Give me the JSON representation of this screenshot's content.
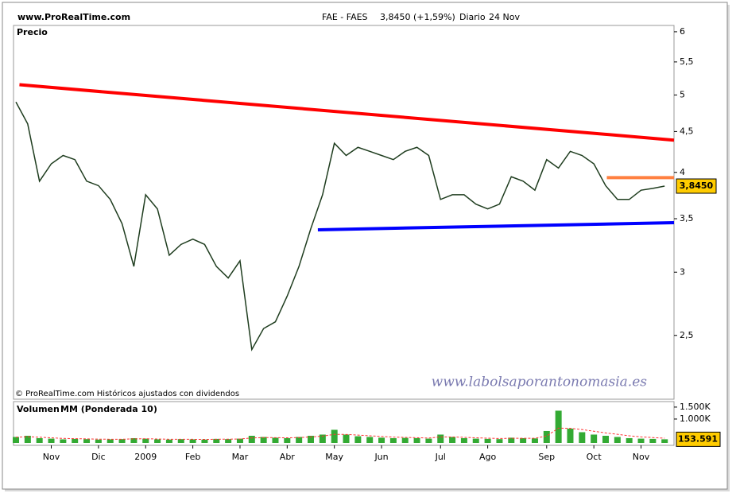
{
  "chart_data": [
    {
      "type": "line",
      "source": "www.ProRealTime.com",
      "title": "FAE - FAES",
      "quote": "3,8450 (+1,59%)",
      "period": "Diario",
      "date": "24 Nov",
      "panel_label": "Precio",
      "footnote": "© ProRealTime.com Históricos ajustados con dividendos",
      "watermark": "www.labolsaporantonomasia.es",
      "last_price": {
        "value": 3.845,
        "label": "3,8450"
      },
      "log_scale": true,
      "ylim": [
        2.08,
        6.11
      ],
      "yticks": [
        {
          "value": 2.5,
          "label": "2,5"
        },
        3,
        {
          "value": 3.5,
          "label": "3,5"
        },
        4,
        {
          "value": 4.5,
          "label": "4,5"
        },
        5,
        {
          "value": 5.5,
          "label": "5,5"
        },
        6
      ],
      "color": "#1f3d1f",
      "values": [
        4.9,
        4.6,
        3.9,
        4.1,
        4.2,
        4.15,
        3.9,
        3.85,
        3.7,
        3.45,
        3.05,
        3.75,
        3.6,
        3.15,
        3.25,
        3.3,
        3.25,
        3.05,
        2.95,
        3.1,
        2.4,
        2.55,
        2.6,
        2.8,
        3.05,
        3.4,
        3.75,
        4.35,
        4.2,
        4.3,
        4.25,
        4.2,
        4.15,
        4.25,
        4.3,
        4.2,
        3.7,
        3.75,
        3.75,
        3.65,
        3.6,
        3.65,
        3.95,
        3.9,
        3.8,
        4.15,
        4.05,
        4.25,
        4.2,
        4.1,
        3.85,
        3.7,
        3.7,
        3.8,
        3.82,
        3.845
      ],
      "trendlines": [
        {
          "color": "#ff0000",
          "start": [
            0.3,
            5.15
          ],
          "end": [
            56.2,
            4.39
          ]
        },
        {
          "color": "#0000ff",
          "start": [
            25.6,
            3.39
          ],
          "end": [
            56.2,
            3.46
          ]
        },
        {
          "color": "#ff8040",
          "start": [
            50.1,
            3.94
          ],
          "end": [
            56.2,
            3.94
          ]
        }
      ]
    },
    {
      "type": "bar",
      "categories": [
        null,
        null,
        null,
        "Nov",
        null,
        null,
        null,
        "Dic",
        null,
        null,
        null,
        "2009",
        null,
        null,
        null,
        "Feb",
        null,
        null,
        null,
        "Mar",
        null,
        null,
        null,
        "Abr",
        null,
        null,
        null,
        "May",
        null,
        null,
        null,
        "Jun",
        null,
        null,
        null,
        null,
        "Jul",
        null,
        null,
        null,
        "Ago",
        null,
        null,
        null,
        null,
        "Sep",
        null,
        null,
        null,
        "Oct",
        null,
        null,
        null,
        "Nov",
        null,
        null
      ],
      "ylim": [
        0,
        1730000
      ],
      "yticks": [
        {
          "value": 1000000,
          "label": "1.000K"
        },
        {
          "value": 1500000,
          "label": "1.500K"
        }
      ],
      "last_volume": {
        "value": 153591,
        "label": "153.591"
      },
      "series": [
        {
          "name": "Volumen",
          "color": "#33aa33",
          "values": [
            250000,
            300000,
            200000,
            180000,
            150000,
            170000,
            160000,
            140000,
            150000,
            160000,
            200000,
            180000,
            150000,
            140000,
            160000,
            150000,
            140000,
            170000,
            160000,
            180000,
            300000,
            250000,
            220000,
            200000,
            250000,
            300000,
            350000,
            550000,
            350000,
            280000,
            250000,
            220000,
            200000,
            210000,
            200000,
            180000,
            350000,
            250000,
            200000,
            180000,
            170000,
            160000,
            220000,
            200000,
            190000,
            500000,
            1350000,
            600000,
            450000,
            350000,
            300000,
            250000,
            200000,
            180000,
            170000,
            153591
          ]
        },
        {
          "name": "MM (Ponderada 10)",
          "color": "#ff3333",
          "values": [
            240000,
            260000,
            240000,
            215000,
            190000,
            180000,
            170000,
            160000,
            155000,
            155000,
            170000,
            175000,
            165000,
            155000,
            155000,
            152000,
            148000,
            155000,
            158000,
            165000,
            210000,
            225000,
            222000,
            215000,
            225000,
            250000,
            285000,
            360000,
            355000,
            330000,
            300000,
            270000,
            245000,
            232000,
            220000,
            205000,
            250000,
            250000,
            235000,
            215000,
            200000,
            185000,
            195000,
            197000,
            195000,
            290000,
            620000,
            610000,
            560000,
            490000,
            420000,
            360000,
            300000,
            255000,
            225000,
            200000
          ]
        }
      ]
    }
  ]
}
